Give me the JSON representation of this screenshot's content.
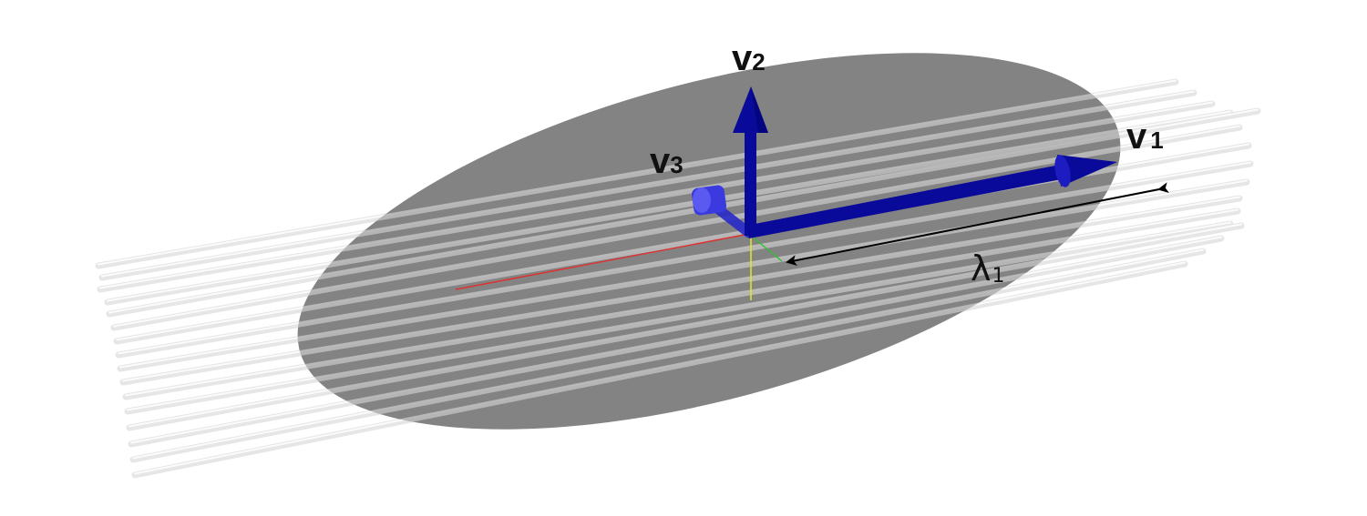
{
  "labels": {
    "v1": {
      "main": "v",
      "sub": "1"
    },
    "v2": {
      "main": "v",
      "sub": "2"
    },
    "v3": {
      "main": "v",
      "sub": "3"
    },
    "lambda1": {
      "main": "λ",
      "sub": "1"
    }
  },
  "colors": {
    "background": "#ffffff",
    "ellipsoid": "#808080",
    "fiber": "#e8e8e8",
    "vector": "#0a0a9a",
    "vector_light": "#3a3adf",
    "measure_arrow": "#000000",
    "axis_x": "#e03030",
    "axis_y": "#e0e030",
    "axis_z": "#30c030"
  },
  "elements": {
    "ellipsoid": "tensor-ellipsoid",
    "fibers": "fiber-bundle",
    "eigenvectors": [
      "v1",
      "v2",
      "v3"
    ],
    "measure": "lambda1"
  }
}
